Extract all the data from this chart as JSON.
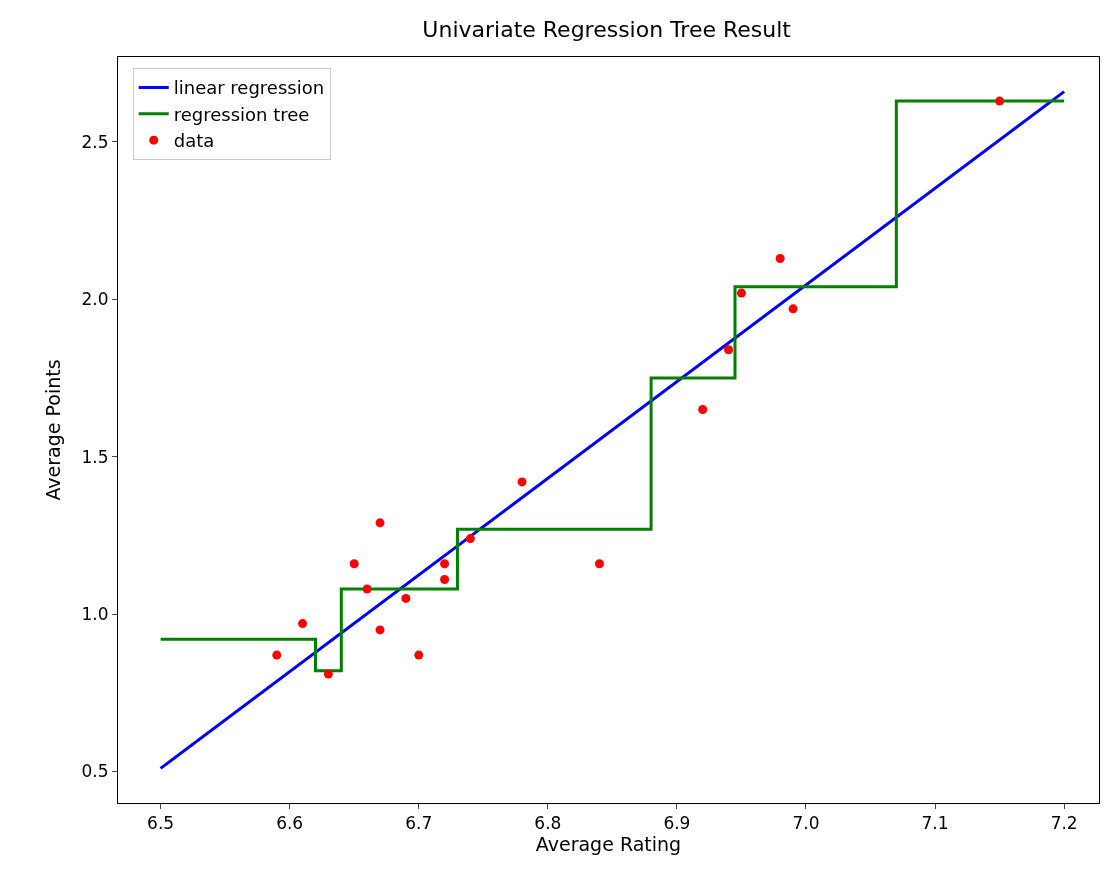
{
  "chart_data": {
    "type": "line",
    "title": "Univariate Regression Tree Result",
    "xlabel": "Average Rating",
    "ylabel": "Average Points",
    "xlim": [
      6.467,
      7.227
    ],
    "xticks": [
      {
        "value": 6.5,
        "label": "6.5"
      },
      {
        "value": 6.6,
        "label": "6.6"
      },
      {
        "value": 6.7,
        "label": "6.7"
      },
      {
        "value": 6.8,
        "label": "6.8"
      },
      {
        "value": 6.9,
        "label": "6.9"
      },
      {
        "value": 7.0,
        "label": "7.0"
      },
      {
        "value": 7.1,
        "label": "7.1"
      },
      {
        "value": 7.2,
        "label": "7.2"
      }
    ],
    "ylim": [
      0.4,
      2.77
    ],
    "yticks": [
      {
        "value": 0.5,
        "label": "0.5"
      },
      {
        "value": 1.0,
        "label": "1.0"
      },
      {
        "value": 1.5,
        "label": "1.5"
      },
      {
        "value": 2.0,
        "label": "2.0"
      },
      {
        "value": 2.5,
        "label": "2.5"
      }
    ],
    "legend": "top left",
    "series": [
      {
        "name": "linear regression",
        "color": "#0000ff",
        "x": [
          6.5,
          7.2
        ],
        "values": [
          0.51,
          2.66
        ]
      },
      {
        "name": "regression tree",
        "type": "step",
        "color": "#008000",
        "x": [
          6.5,
          6.62,
          6.64,
          6.73,
          6.88,
          6.945,
          7.07,
          7.2
        ],
        "values": [
          0.92,
          0.82,
          1.08,
          1.27,
          1.75,
          2.04,
          2.63,
          2.63
        ]
      },
      {
        "name": "data",
        "type": "scatter",
        "color": "#ff0000",
        "marker": "circle",
        "x": [
          6.59,
          6.61,
          6.63,
          6.65,
          6.66,
          6.67,
          6.67,
          6.69,
          6.7,
          6.72,
          6.72,
          6.74,
          6.78,
          6.84,
          6.92,
          6.94,
          6.95,
          6.98,
          6.99,
          7.15
        ],
        "values": [
          0.87,
          0.97,
          0.81,
          1.16,
          1.08,
          1.29,
          0.95,
          1.05,
          0.87,
          1.16,
          1.11,
          1.24,
          1.42,
          1.16,
          1.65,
          1.84,
          2.02,
          2.13,
          1.97,
          2.63
        ]
      }
    ]
  }
}
